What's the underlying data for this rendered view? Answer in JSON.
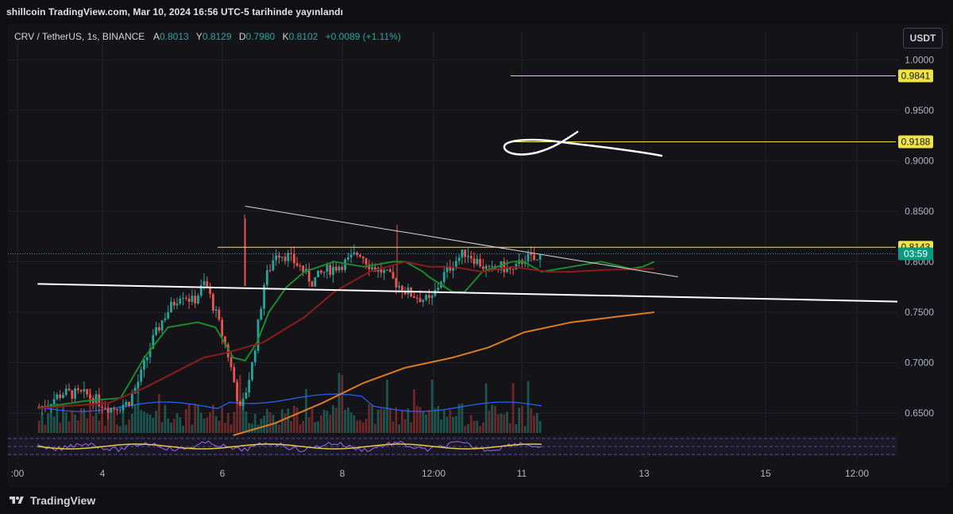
{
  "header": {
    "published": "shillcoin TradingView.com, Mar 10, 2024 16:56 UTC-5 tarihinde yayınlandı"
  },
  "legend": {
    "symbol": "CRV / TetherUS, 1s, BINANCE",
    "o_label": "A",
    "o_value": "0.8013",
    "h_label": "Y",
    "h_value": "0.8129",
    "l_label": "D",
    "l_value": "0.7980",
    "c_label": "K",
    "c_value": "0.8102",
    "change": "+0.0089 (+1.11%)"
  },
  "currency_button": "USDT",
  "footer": {
    "brand": "TradingView"
  },
  "chart_data": {
    "type": "candlestick",
    "symbol": "CRV / TetherUS",
    "interval": "1s",
    "exchange": "BINANCE",
    "last_price": 0.8102,
    "countdown": "03:59",
    "price_axis": {
      "ticks": [
        "1.0000",
        "0.9500",
        "0.9000",
        "0.8500",
        "0.8000",
        "0.7500",
        "0.7000",
        "0.6500"
      ],
      "range": [
        0.628,
        1.012
      ]
    },
    "time_axis": {
      "ticks": [
        ":00",
        "4",
        "6",
        "8",
        "12:00",
        "11",
        "13",
        "15",
        "12:00"
      ],
      "range": [
        -5,
        145
      ]
    },
    "horizontal_levels": [
      {
        "value": 0.9841,
        "label": "0.9841",
        "color": "#f0e442"
      },
      {
        "value": 0.9188,
        "label": "0.9188",
        "color": "#f0e442"
      },
      {
        "value": 0.8143,
        "label": "0.8143",
        "color": "#f0e442"
      }
    ],
    "trend_lines": [
      {
        "from": [
          0,
          0.778
        ],
        "to": [
          145,
          0.7605
        ],
        "color": "#ffffff",
        "width": 2
      },
      {
        "from": [
          35,
          0.855
        ],
        "to": [
          108,
          0.785
        ],
        "color": "#d8d8d8",
        "width": 1
      }
    ],
    "moving_averages": [
      {
        "color": "#1b8a2e",
        "values": [
          [
            0,
            0.655
          ],
          [
            8,
            0.662
          ],
          [
            14,
            0.665
          ],
          [
            18,
            0.705
          ],
          [
            22,
            0.735
          ],
          [
            27,
            0.74
          ],
          [
            30,
            0.735
          ],
          [
            33,
            0.705
          ],
          [
            35,
            0.702
          ],
          [
            37,
            0.72
          ],
          [
            39,
            0.75
          ],
          [
            42,
            0.775
          ],
          [
            45,
            0.79
          ],
          [
            50,
            0.8
          ],
          [
            55,
            0.795
          ],
          [
            60,
            0.8
          ],
          [
            62,
            0.8
          ],
          [
            65,
            0.79
          ],
          [
            60,
            0.8
          ],
          [
            66,
            0.785
          ],
          [
            70,
            0.77
          ],
          [
            72,
            0.77
          ],
          [
            75,
            0.79
          ],
          [
            80,
            0.8
          ],
          [
            82,
            0.8
          ],
          [
            85,
            0.79
          ],
          [
            90,
            0.795
          ],
          [
            95,
            0.8
          ],
          [
            100,
            0.793
          ],
          [
            102,
            0.795
          ],
          [
            104,
            0.8
          ]
        ]
      },
      {
        "color": "#8b1c1c",
        "values": [
          [
            0,
            0.655
          ],
          [
            12,
            0.66
          ],
          [
            18,
            0.675
          ],
          [
            23,
            0.69
          ],
          [
            28,
            0.705
          ],
          [
            32,
            0.71
          ],
          [
            38,
            0.72
          ],
          [
            45,
            0.745
          ],
          [
            50,
            0.77
          ],
          [
            56,
            0.79
          ],
          [
            62,
            0.8
          ],
          [
            66,
            0.795
          ],
          [
            70,
            0.795
          ],
          [
            75,
            0.79
          ],
          [
            80,
            0.795
          ],
          [
            86,
            0.79
          ],
          [
            90,
            0.79
          ],
          [
            96,
            0.792
          ],
          [
            104,
            0.793
          ]
        ]
      },
      {
        "color": "#e07b1f",
        "values": [
          [
            33,
            0.628
          ],
          [
            40,
            0.64
          ],
          [
            48,
            0.66
          ],
          [
            55,
            0.68
          ],
          [
            62,
            0.695
          ],
          [
            70,
            0.705
          ],
          [
            76,
            0.715
          ],
          [
            82,
            0.73
          ],
          [
            90,
            0.74
          ],
          [
            97,
            0.745
          ],
          [
            104,
            0.75
          ]
        ]
      }
    ],
    "scribble": {
      "color": "#ffffff"
    }
  }
}
